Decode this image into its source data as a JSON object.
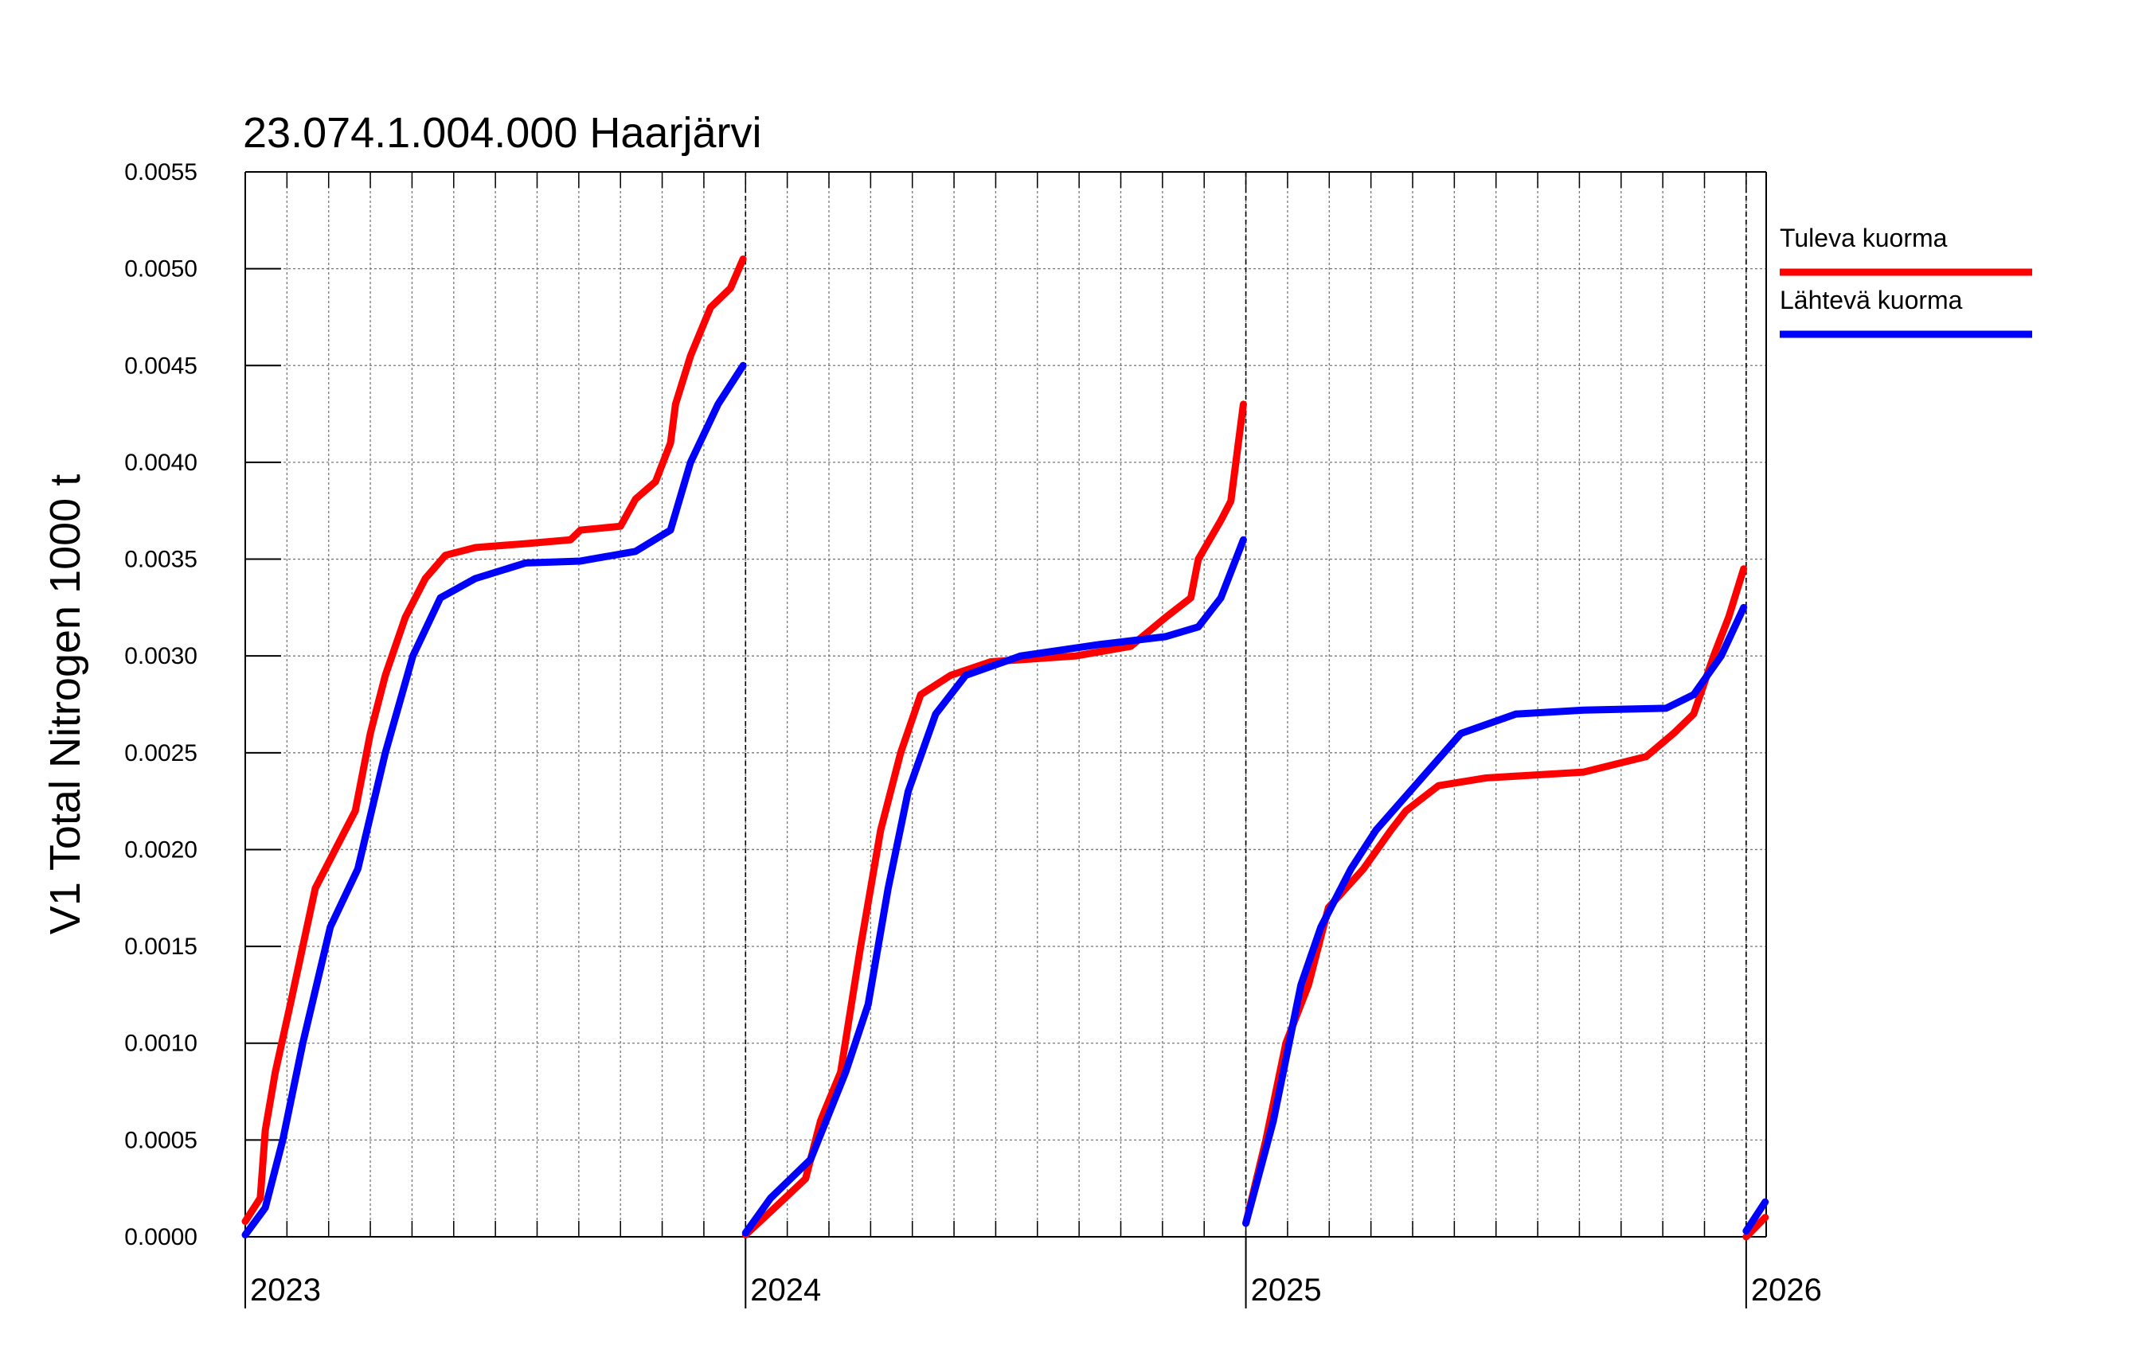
{
  "chart_data": {
    "type": "line",
    "title": "23.074.1.004.000 Haarjärvi",
    "y_label": "V1 Total Nitrogen 1000 t",
    "xlim": [
      2023,
      2026.04
    ],
    "xticks": [
      2023,
      2024,
      2025,
      2026
    ],
    "ylim": [
      0,
      0.0055
    ],
    "yticks": [
      {
        "value": 0,
        "label": "0.0000"
      },
      0.0005,
      {
        "value": 0.001,
        "label": "0.0010"
      },
      0.0015,
      {
        "value": 0.002,
        "label": "0.0020"
      },
      0.0025,
      {
        "value": 0.003,
        "label": "0.0030"
      },
      0.0035,
      {
        "value": 0.004,
        "label": "0.0040"
      },
      0.0045,
      {
        "value": 0.005,
        "label": "0.0050"
      },
      0.0055
    ],
    "grid": true,
    "legend": "right",
    "series": [
      {
        "name": "Tuleva kuorma",
        "color": "#ff0000",
        "x": [
          2023.0,
          2023.03,
          2023.04,
          2023.06,
          2023.09,
          2023.115,
          2023.14,
          2023.18,
          2023.22,
          2023.25,
          2023.28,
          2023.32,
          2023.36,
          2023.4,
          2023.46,
          2023.56,
          2023.65,
          2023.67,
          2023.75,
          2023.78,
          2023.82,
          2023.85,
          2023.86,
          2023.89,
          2023.93,
          2023.97,
          2023.995,
          2023.998,
          2024.0,
          2024.05,
          2024.12,
          2024.15,
          2024.19,
          2024.23,
          2024.27,
          2024.31,
          2024.35,
          2024.41,
          2024.49,
          2024.66,
          2024.77,
          2024.84,
          2024.89,
          2024.905,
          2024.95,
          2024.97,
          2024.995,
          2024.998,
          2025.0,
          2025.04,
          2025.08,
          2025.125,
          2025.165,
          2025.235,
          2025.29,
          2025.32,
          2025.385,
          2025.48,
          2025.675,
          2025.8,
          2025.855,
          2025.895,
          2025.935,
          2025.965,
          2025.995,
          2025.998,
          2026.0,
          2026.038
        ],
        "values": [
          8e-05,
          0.0002,
          0.00055,
          0.00085,
          0.0012,
          0.0015,
          0.0018,
          0.002,
          0.0022,
          0.0026,
          0.0029,
          0.0032,
          0.0034,
          0.00352,
          0.00356,
          0.00358,
          0.0036,
          0.00365,
          0.00367,
          0.00381,
          0.0039,
          0.0041,
          0.0043,
          0.00455,
          0.0048,
          0.0049,
          0.00505,
          null,
          1e-05,
          0.00013,
          0.0003,
          0.0006,
          0.00085,
          0.0015,
          0.0021,
          0.0025,
          0.0028,
          0.0029,
          0.00297,
          0.003,
          0.00305,
          0.0032,
          0.0033,
          0.0035,
          0.0037,
          0.0038,
          0.0043,
          null,
          7e-05,
          0.0005,
          0.001,
          0.0013,
          0.0017,
          0.0019,
          0.0021,
          0.0022,
          0.00233,
          0.00237,
          0.0024,
          0.00248,
          0.0026,
          0.0027,
          0.003,
          0.0032,
          0.00345,
          null,
          0.0,
          0.0001
        ]
      },
      {
        "name": "Lähtevä kuorma",
        "color": "#0000ff",
        "x": [
          2023.0,
          2023.04,
          2023.075,
          2023.115,
          2023.17,
          2023.225,
          2023.28,
          2023.335,
          2023.39,
          2023.46,
          2023.56,
          2023.67,
          2023.78,
          2023.85,
          2023.89,
          2023.945,
          2023.995,
          2023.998,
          2024.0,
          2024.05,
          2024.13,
          2024.2,
          2024.245,
          2024.285,
          2024.325,
          2024.38,
          2024.44,
          2024.55,
          2024.71,
          2024.84,
          2024.905,
          2024.95,
          2024.995,
          2024.998,
          2025.0,
          2025.055,
          2025.11,
          2025.15,
          2025.21,
          2025.26,
          2025.345,
          2025.43,
          2025.54,
          2025.675,
          2025.84,
          2025.895,
          2025.95,
          2025.995,
          2025.998,
          2026.0,
          2026.038
        ],
        "values": [
          1e-05,
          0.00015,
          0.0005,
          0.001,
          0.0016,
          0.0019,
          0.0025,
          0.003,
          0.0033,
          0.0034,
          0.00348,
          0.00349,
          0.00354,
          0.00365,
          0.004,
          0.0043,
          0.0045,
          null,
          2e-05,
          0.0002,
          0.0004,
          0.00085,
          0.0012,
          0.0018,
          0.0023,
          0.0027,
          0.0029,
          0.003,
          0.00306,
          0.0031,
          0.00315,
          0.0033,
          0.0036,
          null,
          7e-05,
          0.0006,
          0.0013,
          0.0016,
          0.0019,
          0.0021,
          0.00235,
          0.0026,
          0.0027,
          0.00272,
          0.00273,
          0.0028,
          0.003,
          0.00325,
          null,
          3e-05,
          0.00018
        ]
      }
    ]
  }
}
